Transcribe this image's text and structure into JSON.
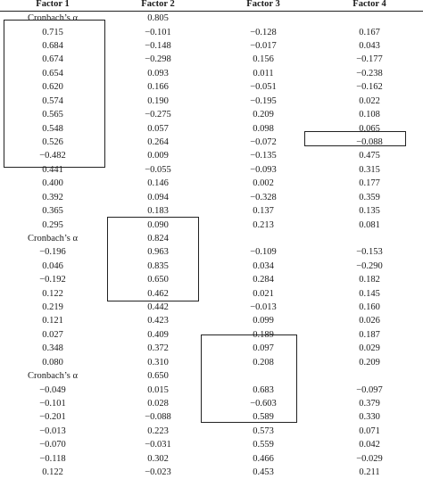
{
  "headers": [
    "Factor 1",
    "Factor 2",
    "Factor 3",
    "Factor 4"
  ],
  "rows": [
    [
      "Cronbach’s α",
      "0.805",
      "",
      ""
    ],
    [
      "0.715",
      "−0.101",
      "−0.128",
      "0.167"
    ],
    [
      "0.684",
      "−0.148",
      "−0.017",
      "0.043"
    ],
    [
      "0.674",
      "−0.298",
      "0.156",
      "−0.177"
    ],
    [
      "0.654",
      "0.093",
      "0.011",
      "−0.238"
    ],
    [
      "0.620",
      "0.166",
      "−0.051",
      "−0.162"
    ],
    [
      "0.574",
      "0.190",
      "−0.195",
      "0.022"
    ],
    [
      "0.565",
      "−0.275",
      "0.209",
      "0.108"
    ],
    [
      "0.548",
      "0.057",
      "0.098",
      "0.065"
    ],
    [
      "0.526",
      "0.264",
      "−0.072",
      "−0.088"
    ],
    [
      "−0.482",
      "0.009",
      "−0.135",
      "0.475"
    ],
    [
      "0.441",
      "−0.055",
      "−0.093",
      "0.315"
    ],
    [
      "0.400",
      "0.146",
      "0.002",
      "0.177"
    ],
    [
      "0.392",
      "0.094",
      "−0.328",
      "0.359"
    ],
    [
      "0.365",
      "0.183",
      "0.137",
      "0.135"
    ],
    [
      "0.295",
      "0.090",
      "0.213",
      "0.081"
    ],
    [
      "Cronbach’s α",
      "0.824",
      "",
      ""
    ],
    [
      "−0.196",
      "0.963",
      "−0.109",
      "−0.153"
    ],
    [
      "0.046",
      "0.835",
      "0.034",
      "−0.290"
    ],
    [
      "−0.192",
      "0.650",
      "0.284",
      "0.182"
    ],
    [
      "0.122",
      "0.462",
      "0.021",
      "0.145"
    ],
    [
      "0.219",
      "0.442",
      "−0.013",
      "0.160"
    ],
    [
      "0.121",
      "0.423",
      "0.099",
      "0.026"
    ],
    [
      "0.027",
      "0.409",
      "0.189",
      "0.187"
    ],
    [
      "0.348",
      "0.372",
      "0.097",
      "0.029"
    ],
    [
      "0.080",
      "0.310",
      "0.208",
      "0.209"
    ],
    [
      "Cronbach’s α",
      "0.650",
      "",
      ""
    ],
    [
      "−0.049",
      "0.015",
      "0.683",
      "−0.097"
    ],
    [
      "−0.101",
      "0.028",
      "−0.603",
      "0.379"
    ],
    [
      "−0.201",
      "−0.088",
      "0.589",
      "0.330"
    ],
    [
      "−0.013",
      "0.223",
      "0.573",
      "0.071"
    ],
    [
      "−0.070",
      "−0.031",
      "0.559",
      "0.042"
    ],
    [
      "−0.118",
      "0.302",
      "0.466",
      "−0.029"
    ],
    [
      "0.122",
      "−0.023",
      "0.453",
      "0.211"
    ]
  ]
}
